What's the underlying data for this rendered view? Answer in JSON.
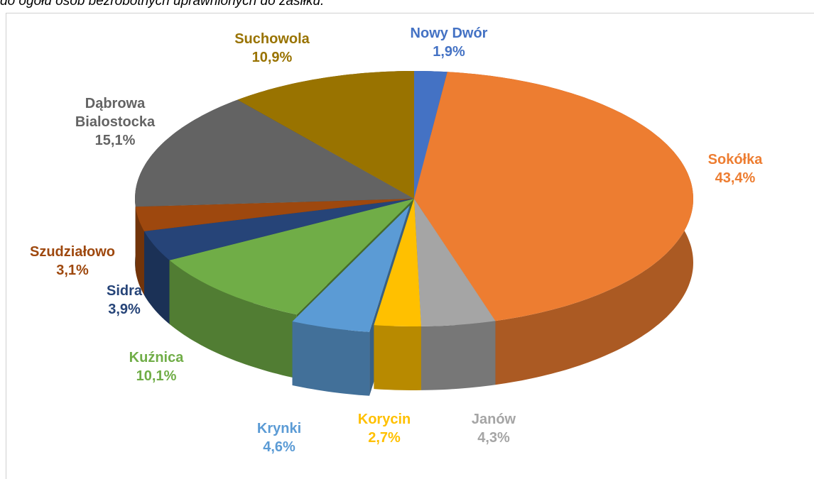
{
  "caption": "do ogółu osób bezrobotnych uprawnionych do zasiłku.",
  "chart_data": {
    "type": "pie",
    "categories": [
      "Nowy Dwór",
      "Sokółka",
      "Janów",
      "Korycin",
      "Krynki",
      "Kuźnica",
      "Sidra",
      "Szudziałowo",
      "Dąbrowa Bialostocka",
      "Suchowola"
    ],
    "values": [
      1.9,
      43.4,
      4.3,
      2.7,
      4.6,
      10.1,
      3.9,
      3.1,
      15.1,
      10.9
    ],
    "value_labels": [
      "1,9%",
      "43,4%",
      "4,3%",
      "2,7%",
      "4,6%",
      "10,1%",
      "3,9%",
      "3,1%",
      "15,1%",
      "10,9%"
    ],
    "colors": [
      "#4472c4",
      "#ed7d31",
      "#a5a5a5",
      "#ffc000",
      "#5b9bd5",
      "#70ad47",
      "#264478",
      "#9e480e",
      "#636363",
      "#997300"
    ],
    "exploded": [
      4
    ]
  }
}
